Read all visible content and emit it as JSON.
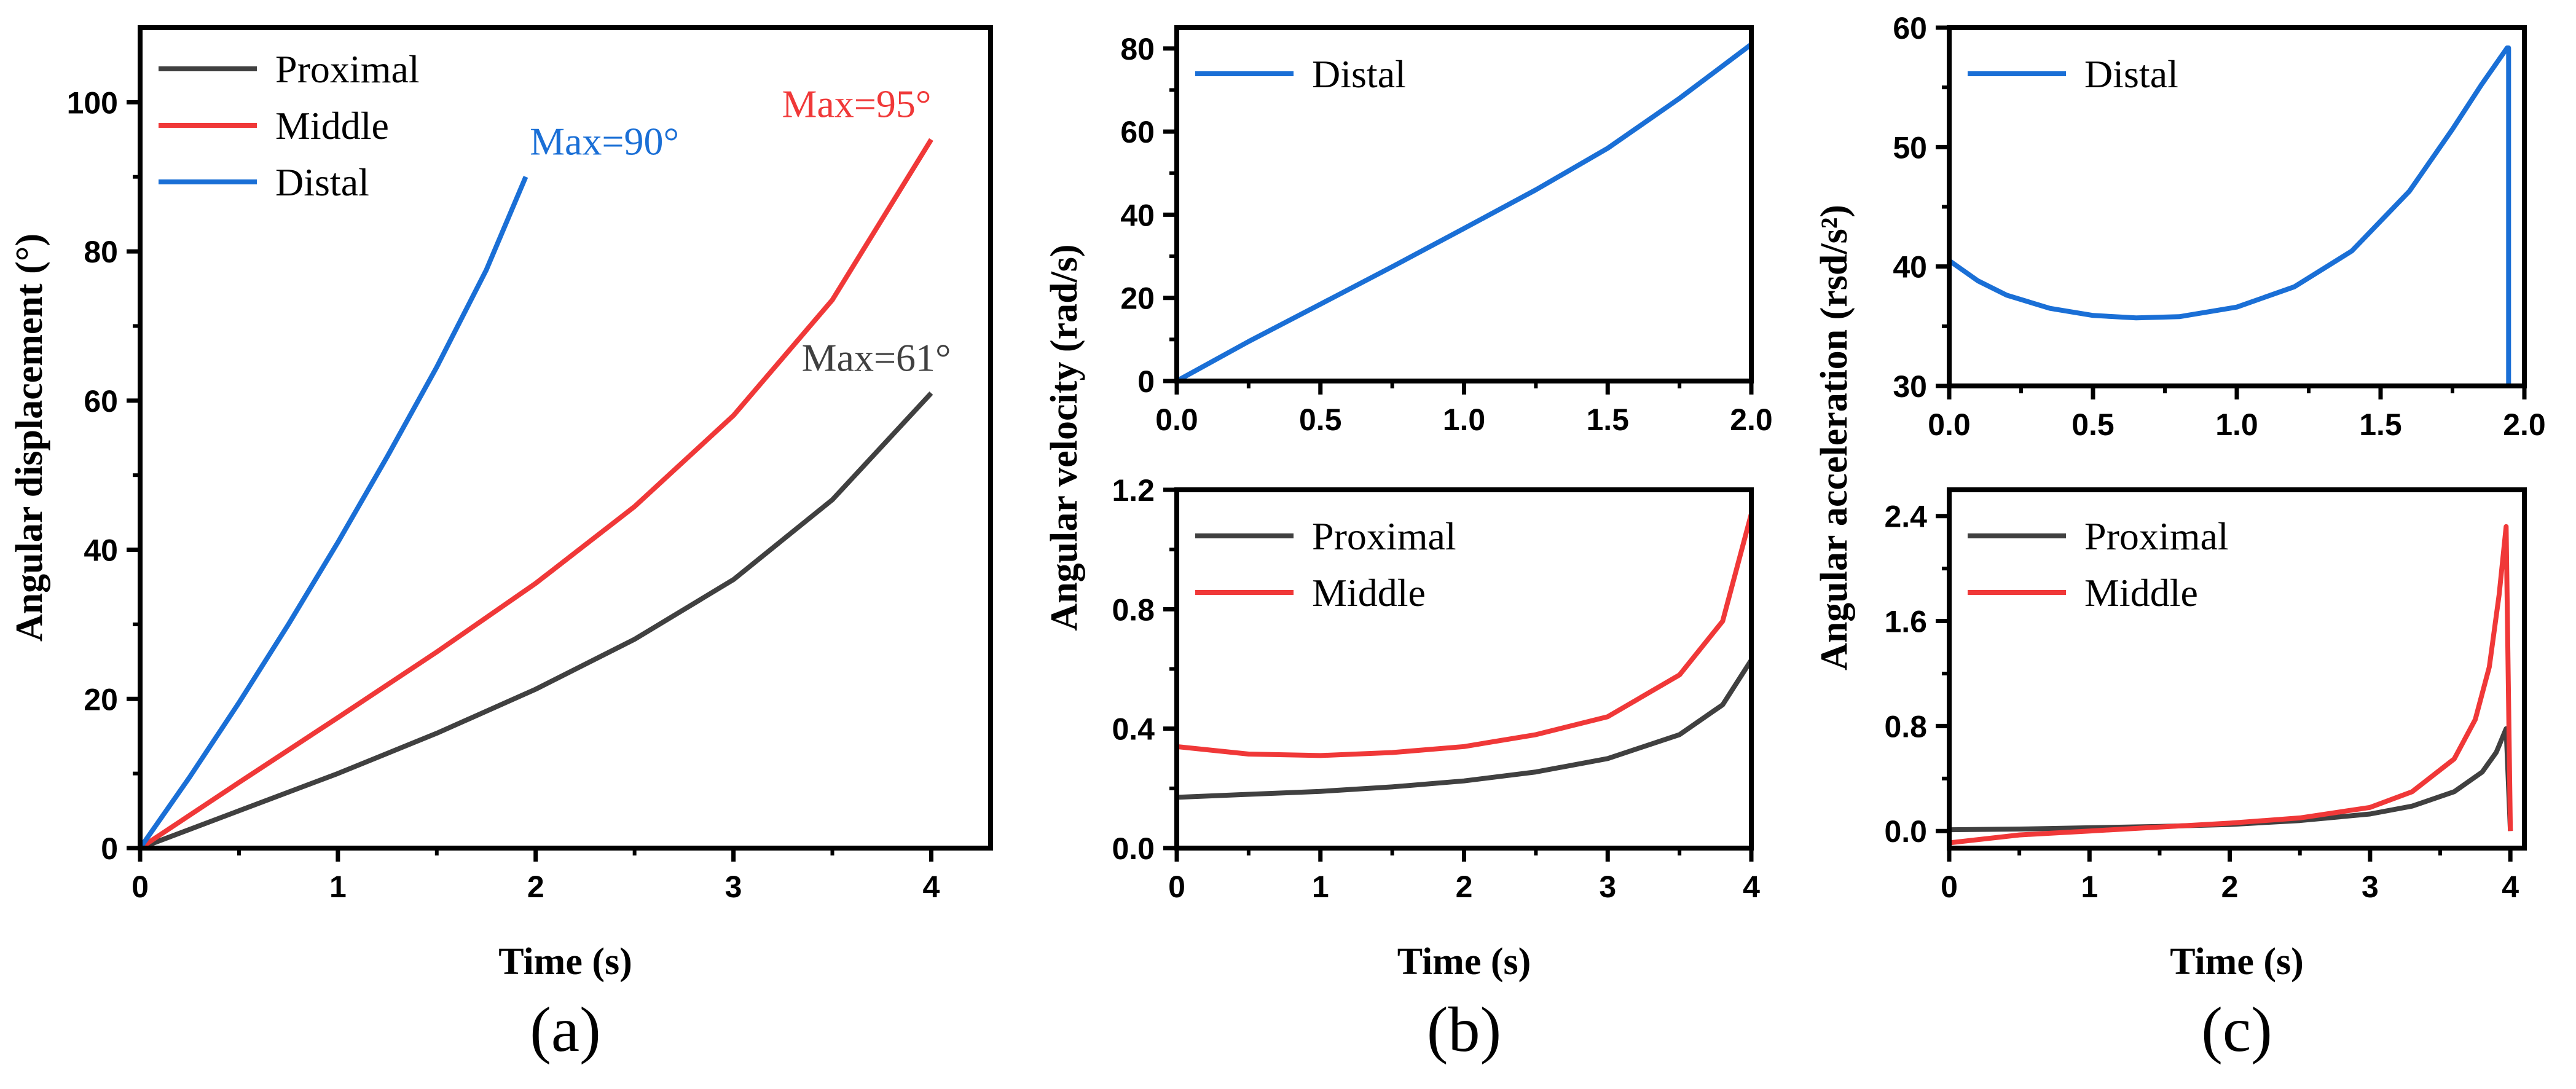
{
  "colors": {
    "proximal": "#404040",
    "middle": "#f03838",
    "distal": "#1a6fd6"
  },
  "chart_data": [
    {
      "type": "line",
      "panel": "a",
      "panel_label": "(a)",
      "xlabel": "Time (s)",
      "ylabel": "Angular displacement (°)",
      "xlim": [
        0,
        4.3
      ],
      "ylim": [
        0,
        110
      ],
      "xticks": [
        0,
        1,
        2,
        3,
        4
      ],
      "yticks": [
        0,
        20,
        40,
        60,
        80,
        100
      ],
      "legend": "top-left",
      "series": [
        {
          "name": "Proximal",
          "color_key": "proximal",
          "x": [
            0,
            0.5,
            1.0,
            1.5,
            2.0,
            2.5,
            3.0,
            3.5,
            4.0
          ],
          "y": [
            0,
            5,
            10,
            15.4,
            21.3,
            28,
            36,
            46.7,
            61
          ]
        },
        {
          "name": "Middle",
          "color_key": "middle",
          "x": [
            0,
            0.5,
            1.0,
            1.5,
            2.0,
            2.5,
            3.0,
            3.5,
            4.0
          ],
          "y": [
            0,
            8.8,
            17.5,
            26.3,
            35.5,
            45.8,
            58,
            73.5,
            95
          ]
        },
        {
          "name": "Distal",
          "color_key": "distal",
          "x": [
            0,
            0.25,
            0.5,
            0.75,
            1.0,
            1.25,
            1.5,
            1.75,
            1.95
          ],
          "y": [
            0,
            9.5,
            19.5,
            30,
            41,
            52.5,
            64.5,
            77.5,
            90
          ]
        }
      ],
      "annotations": [
        {
          "text": "Max=90°",
          "x": 1.97,
          "y": 93,
          "anchor": "start",
          "color_key": "distal"
        },
        {
          "text": "Max=95°",
          "x": 4.0,
          "y": 98,
          "anchor": "end",
          "color_key": "middle"
        },
        {
          "text": "Max=61°",
          "x": 4.1,
          "y": 64,
          "anchor": "end",
          "color_key": "proximal"
        }
      ]
    },
    {
      "type": "line",
      "panel": "b-top",
      "xlabel": "",
      "ylabel": "",
      "xlim": [
        0,
        2.0
      ],
      "ylim": [
        0,
        85
      ],
      "xticks": [
        0.0,
        0.5,
        1.0,
        1.5,
        2.0
      ],
      "yticks": [
        0,
        20,
        40,
        60,
        80
      ],
      "legend": "top-left",
      "series": [
        {
          "name": "Distal",
          "color_key": "distal",
          "x": [
            0,
            0.25,
            0.5,
            0.75,
            1.0,
            1.25,
            1.5,
            1.75,
            2.0
          ],
          "y": [
            0,
            9.5,
            18.5,
            27.5,
            36.7,
            46,
            56,
            68,
            81
          ]
        }
      ]
    },
    {
      "type": "line",
      "panel": "b-bottom",
      "panel_label": "(b)",
      "xlabel": "Time (s)",
      "ylabel": "Angular velocity (rad/s)",
      "xlim": [
        0,
        4
      ],
      "ylim": [
        0,
        1.2
      ],
      "xticks": [
        0,
        1,
        2,
        3,
        4
      ],
      "yticks": [
        0.0,
        0.4,
        0.8,
        1.2
      ],
      "legend": "top-left",
      "series": [
        {
          "name": "Proximal",
          "color_key": "proximal",
          "x": [
            0,
            0.5,
            1.0,
            1.5,
            2.0,
            2.5,
            3.0,
            3.5,
            3.8,
            4.0
          ],
          "y": [
            0.17,
            0.18,
            0.19,
            0.205,
            0.225,
            0.255,
            0.3,
            0.38,
            0.48,
            0.63
          ]
        },
        {
          "name": "Middle",
          "color_key": "middle",
          "x": [
            0,
            0.5,
            1.0,
            1.5,
            2.0,
            2.5,
            3.0,
            3.5,
            3.8,
            4.0
          ],
          "y": [
            0.34,
            0.315,
            0.31,
            0.32,
            0.34,
            0.38,
            0.44,
            0.58,
            0.76,
            1.12
          ]
        }
      ]
    },
    {
      "type": "line",
      "panel": "c-top",
      "xlabel": "",
      "ylabel": "",
      "xlim": [
        0,
        2.0
      ],
      "ylim": [
        30,
        60
      ],
      "xticks": [
        0.0,
        0.5,
        1.0,
        1.5,
        2.0
      ],
      "yticks": [
        30,
        40,
        50,
        60
      ],
      "legend": "top-left",
      "series": [
        {
          "name": "Distal",
          "color_key": "distal",
          "x": [
            0,
            0.1,
            0.2,
            0.35,
            0.5,
            0.65,
            0.8,
            1.0,
            1.2,
            1.4,
            1.6,
            1.75,
            1.85,
            1.94,
            1.945,
            1.945
          ],
          "y": [
            40.5,
            38.8,
            37.6,
            36.5,
            35.9,
            35.7,
            35.8,
            36.6,
            38.3,
            41.3,
            46.3,
            51.5,
            55.2,
            58.3,
            58.3,
            30
          ]
        }
      ]
    },
    {
      "type": "line",
      "panel": "c-bottom",
      "panel_label": "(c)",
      "xlabel": "Time (s)",
      "ylabel": "Angular acceleration (rsd/s²)",
      "xlim": [
        0,
        4.1
      ],
      "ylim": [
        -0.13,
        2.6
      ],
      "xticks": [
        0,
        1,
        2,
        3,
        4
      ],
      "yticks": [
        0.0,
        0.8,
        1.6,
        2.4
      ],
      "legend": "top-left",
      "series": [
        {
          "name": "Proximal",
          "color_key": "proximal",
          "x": [
            0,
            0.5,
            1.0,
            1.5,
            2.0,
            2.5,
            3.0,
            3.3,
            3.6,
            3.8,
            3.9,
            3.97,
            4.0
          ],
          "y": [
            0.01,
            0.015,
            0.025,
            0.035,
            0.05,
            0.08,
            0.13,
            0.19,
            0.3,
            0.45,
            0.6,
            0.78,
            0.0
          ]
        },
        {
          "name": "Middle",
          "color_key": "middle",
          "x": [
            0,
            0.5,
            1.0,
            1.5,
            2.0,
            2.5,
            3.0,
            3.3,
            3.6,
            3.75,
            3.85,
            3.92,
            3.97,
            4.0
          ],
          "y": [
            -0.09,
            -0.03,
            0.0,
            0.03,
            0.06,
            0.1,
            0.18,
            0.3,
            0.55,
            0.85,
            1.25,
            1.8,
            2.32,
            0.0
          ]
        }
      ]
    }
  ]
}
